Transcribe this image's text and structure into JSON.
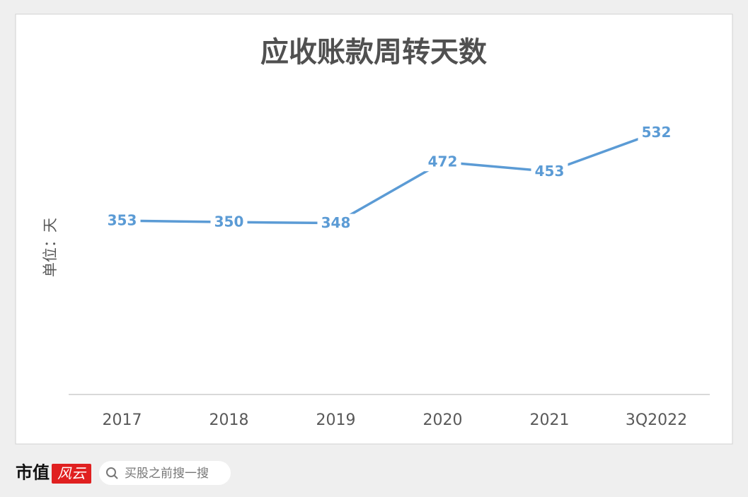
{
  "chart_data": {
    "type": "line",
    "title": "应收账款周转天数",
    "y_label": "单位：天",
    "categories": [
      "2017",
      "2018",
      "2019",
      "2020",
      "2021",
      "3Q2022"
    ],
    "values": [
      353,
      350,
      348,
      472,
      453,
      532
    ],
    "color": "#5b9bd5",
    "ylim": [
      0,
      600
    ]
  },
  "footer": {
    "logo": [
      "市值",
      "风云"
    ],
    "search": "买股之前搜一搜"
  }
}
